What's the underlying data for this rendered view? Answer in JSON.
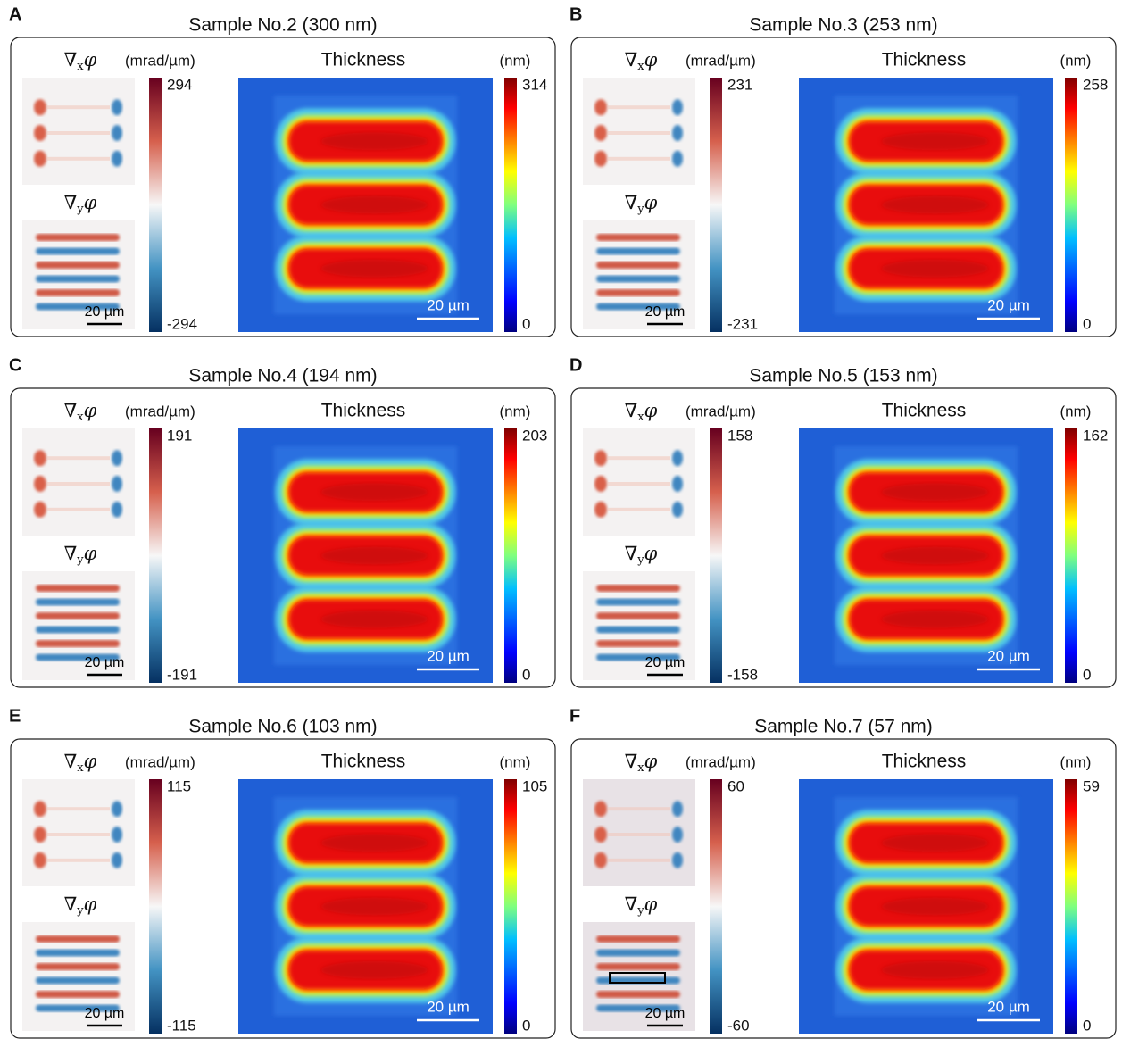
{
  "panels": [
    {
      "letter": "A",
      "title": "Sample No.2 (300 nm)",
      "grad_x": {
        "op": "∇",
        "sub": "x",
        "arg": "φ"
      },
      "grad_y": {
        "op": "∇",
        "sub": "y",
        "arg": "φ"
      },
      "phase_unit": "(mrad/µm)",
      "phase_max": 294,
      "phase_min": -294,
      "thickness_label": "Thickness",
      "thickness_unit": "(nm)",
      "thickness_max": 314,
      "thickness_min": 0,
      "scale_bar_small": "20 µm",
      "scale_bar_large": "20 µm"
    },
    {
      "letter": "B",
      "title": "Sample No.3 (253 nm)",
      "grad_x": {
        "op": "∇",
        "sub": "x",
        "arg": "φ"
      },
      "grad_y": {
        "op": "∇",
        "sub": "y",
        "arg": "φ"
      },
      "phase_unit": "(mrad/µm)",
      "phase_max": 231,
      "phase_min": -231,
      "thickness_label": "Thickness",
      "thickness_unit": "(nm)",
      "thickness_max": 258,
      "thickness_min": 0,
      "scale_bar_small": "20 µm",
      "scale_bar_large": "20 µm"
    },
    {
      "letter": "C",
      "title": "Sample No.4 (194 nm)",
      "grad_x": {
        "op": "∇",
        "sub": "x",
        "arg": "φ"
      },
      "grad_y": {
        "op": "∇",
        "sub": "y",
        "arg": "φ"
      },
      "phase_unit": "(mrad/µm)",
      "phase_max": 191,
      "phase_min": -191,
      "thickness_label": "Thickness",
      "thickness_unit": "(nm)",
      "thickness_max": 203,
      "thickness_min": 0,
      "scale_bar_small": "20 µm",
      "scale_bar_large": "20 µm"
    },
    {
      "letter": "D",
      "title": "Sample No.5 (153 nm)",
      "grad_x": {
        "op": "∇",
        "sub": "x",
        "arg": "φ"
      },
      "grad_y": {
        "op": "∇",
        "sub": "y",
        "arg": "φ"
      },
      "phase_unit": "(mrad/µm)",
      "phase_max": 158,
      "phase_min": -158,
      "thickness_label": "Thickness",
      "thickness_unit": "(nm)",
      "thickness_max": 162,
      "thickness_min": 0,
      "scale_bar_small": "20 µm",
      "scale_bar_large": "20 µm"
    },
    {
      "letter": "E",
      "title": "Sample No.6 (103 nm)",
      "grad_x": {
        "op": "∇",
        "sub": "x",
        "arg": "φ"
      },
      "grad_y": {
        "op": "∇",
        "sub": "y",
        "arg": "φ"
      },
      "phase_unit": "(mrad/µm)",
      "phase_max": 115,
      "phase_min": -115,
      "thickness_label": "Thickness",
      "thickness_unit": "(nm)",
      "thickness_max": 105,
      "thickness_min": 0,
      "scale_bar_small": "20 µm",
      "scale_bar_large": "20 µm"
    },
    {
      "letter": "F",
      "title": "Sample No.7 (57 nm)",
      "grad_x": {
        "op": "∇",
        "sub": "x",
        "arg": "φ"
      },
      "grad_y": {
        "op": "∇",
        "sub": "y",
        "arg": "φ"
      },
      "phase_unit": "(mrad/µm)",
      "phase_max": 60,
      "phase_min": -60,
      "thickness_label": "Thickness",
      "thickness_unit": "(nm)",
      "thickness_max": 59,
      "thickness_min": 0,
      "scale_bar_small": "20 µm",
      "scale_bar_large": "20 µm"
    }
  ]
}
